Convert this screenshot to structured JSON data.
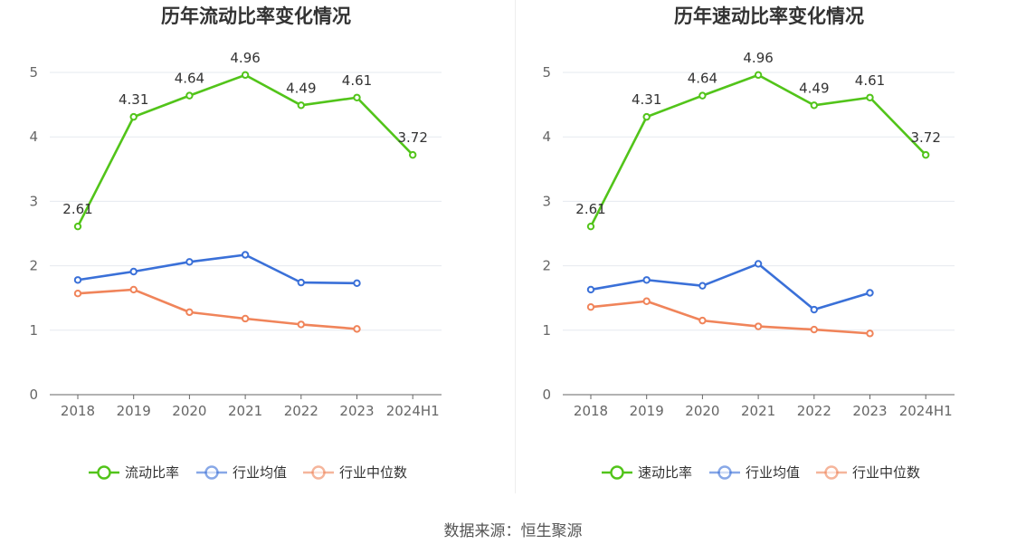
{
  "source_text": "数据来源：恒生聚源",
  "chart_data": [
    {
      "type": "line",
      "title": "历年流动比率变化情况",
      "categories": [
        "2018",
        "2019",
        "2020",
        "2021",
        "2022",
        "2023",
        "2024H1"
      ],
      "ylim": [
        0,
        5
      ],
      "yticks": [
        "0",
        "1",
        "2",
        "3",
        "4",
        "5"
      ],
      "grid": true,
      "legend_position": "bottom-center",
      "series": [
        {
          "name": "流动比率",
          "color": "#52c41a",
          "values": [
            2.61,
            4.31,
            4.64,
            4.96,
            4.49,
            4.61,
            3.72
          ],
          "labels": [
            "2.61",
            "4.31",
            "4.64",
            "4.96",
            "4.49",
            "4.61",
            "3.72"
          ]
        },
        {
          "name": "行业均值",
          "color": "#3a70d8",
          "values": [
            1.78,
            1.91,
            2.06,
            2.17,
            1.74,
            1.73,
            null
          ]
        },
        {
          "name": "行业中位数",
          "color": "#f0845a",
          "values": [
            1.57,
            1.63,
            1.28,
            1.18,
            1.09,
            1.02,
            null
          ]
        }
      ]
    },
    {
      "type": "line",
      "title": "历年速动比率变化情况",
      "categories": [
        "2018",
        "2019",
        "2020",
        "2021",
        "2022",
        "2023",
        "2024H1"
      ],
      "ylim": [
        0,
        5
      ],
      "yticks": [
        "0",
        "1",
        "2",
        "3",
        "4",
        "5"
      ],
      "grid": true,
      "legend_position": "bottom-center",
      "series": [
        {
          "name": "速动比率",
          "color": "#52c41a",
          "values": [
            2.61,
            4.31,
            4.64,
            4.96,
            4.49,
            4.61,
            3.72
          ],
          "labels": [
            "2.61",
            "4.31",
            "4.64",
            "4.96",
            "4.49",
            "4.61",
            "3.72"
          ]
        },
        {
          "name": "行业均值",
          "color": "#3a70d8",
          "values": [
            1.63,
            1.78,
            1.69,
            2.03,
            1.32,
            1.58,
            null
          ]
        },
        {
          "name": "行业中位数",
          "color": "#f0845a",
          "values": [
            1.36,
            1.45,
            1.15,
            1.06,
            1.01,
            0.95,
            null
          ]
        }
      ]
    }
  ]
}
